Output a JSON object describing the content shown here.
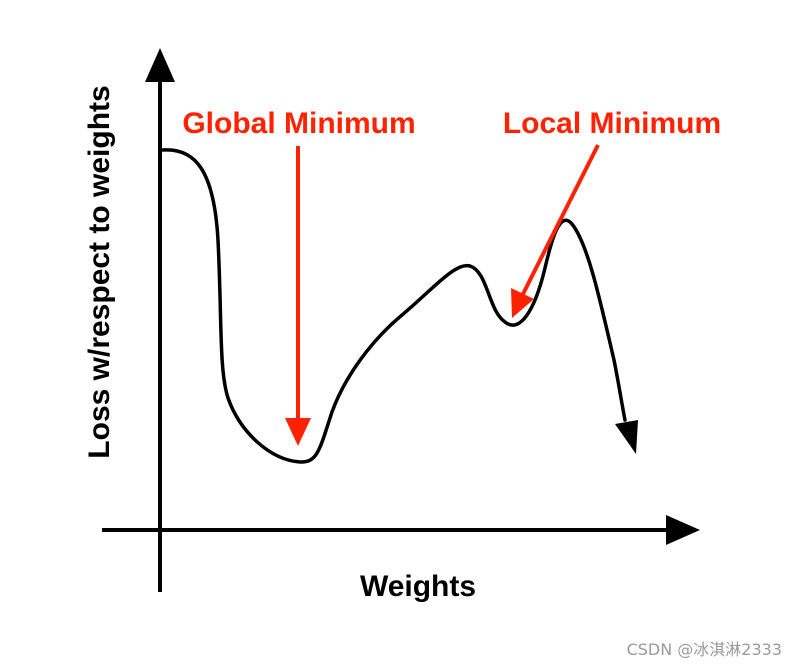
{
  "axes": {
    "x_label": "Weights",
    "y_label": "Loss w/respect to weights"
  },
  "annotations": {
    "global_minimum": "Global Minimum",
    "local_minimum": "Local Minimum"
  },
  "colors": {
    "curve": "#000000",
    "axis": "#000000",
    "annotation": "#ff2200",
    "watermark": "#9a9a9a"
  },
  "watermark": "CSDN @冰淇淋2333"
}
